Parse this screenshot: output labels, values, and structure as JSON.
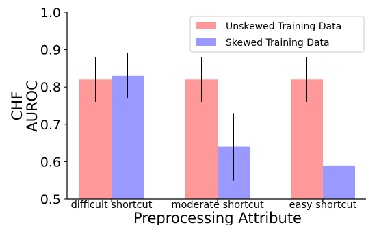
{
  "chart_data": {
    "type": "bar",
    "title": "",
    "xlabel": "Preprocessing Attribute",
    "ylabel_lines": [
      "CHF",
      "AUROC"
    ],
    "ylim": [
      0.5,
      1.0
    ],
    "yticks": [
      "0.5",
      "0.6",
      "0.7",
      "0.8",
      "0.9",
      "1.0"
    ],
    "ytick_values": [
      0.5,
      0.6,
      0.7,
      0.8,
      0.9,
      1.0
    ],
    "categories": [
      "difficult shortcut",
      "moderate shortcut",
      "easy shortcut"
    ],
    "series": [
      {
        "name": "Unskewed Training Data",
        "color": "#ff9999",
        "values": [
          0.82,
          0.82,
          0.82
        ],
        "err_low": [
          0.76,
          0.76,
          0.76
        ],
        "err_high": [
          0.88,
          0.88,
          0.88
        ]
      },
      {
        "name": "Skewed Training Data",
        "color": "#9999ff",
        "values": [
          0.83,
          0.64,
          0.59
        ],
        "err_low": [
          0.77,
          0.55,
          0.51
        ],
        "err_high": [
          0.89,
          0.73,
          0.67
        ]
      }
    ],
    "legend_position": "upper-right",
    "grid": false
  }
}
